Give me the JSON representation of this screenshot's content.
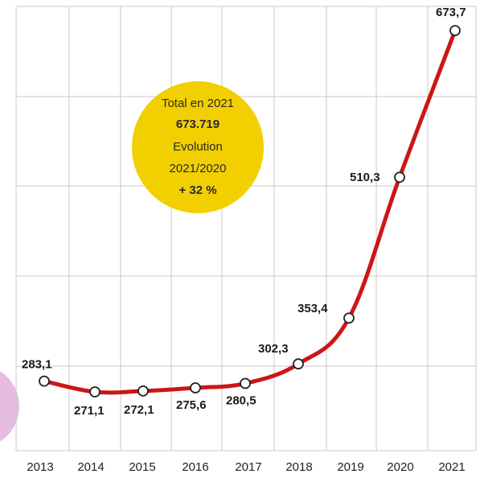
{
  "chart_data": {
    "type": "line",
    "categories": [
      "2013",
      "2014",
      "2015",
      "2016",
      "2017",
      "2018",
      "2019",
      "2020",
      "2021"
    ],
    "series": [
      {
        "values": [
          283.1,
          271.1,
          272.1,
          275.6,
          280.5,
          302.3,
          353.4,
          510.3,
          673.7
        ],
        "labels": [
          "283,1",
          "271,1",
          "272,1",
          "275,6",
          "280,5",
          "302,3",
          "353,4",
          "510,3",
          "673,7"
        ]
      }
    ],
    "ylim": [
      200,
      700
    ],
    "grid": true,
    "colors": {
      "line": "#cc1616",
      "bubble": "#f2cf00",
      "grid": "#c9c9c9",
      "accent_left": "#e6bde0"
    },
    "annotation": {
      "lines": [
        "Total en 2021",
        "673.719",
        "Evolution",
        "2021/2020",
        "+ 32 %"
      ],
      "bold": [
        false,
        true,
        false,
        false,
        true
      ]
    }
  }
}
